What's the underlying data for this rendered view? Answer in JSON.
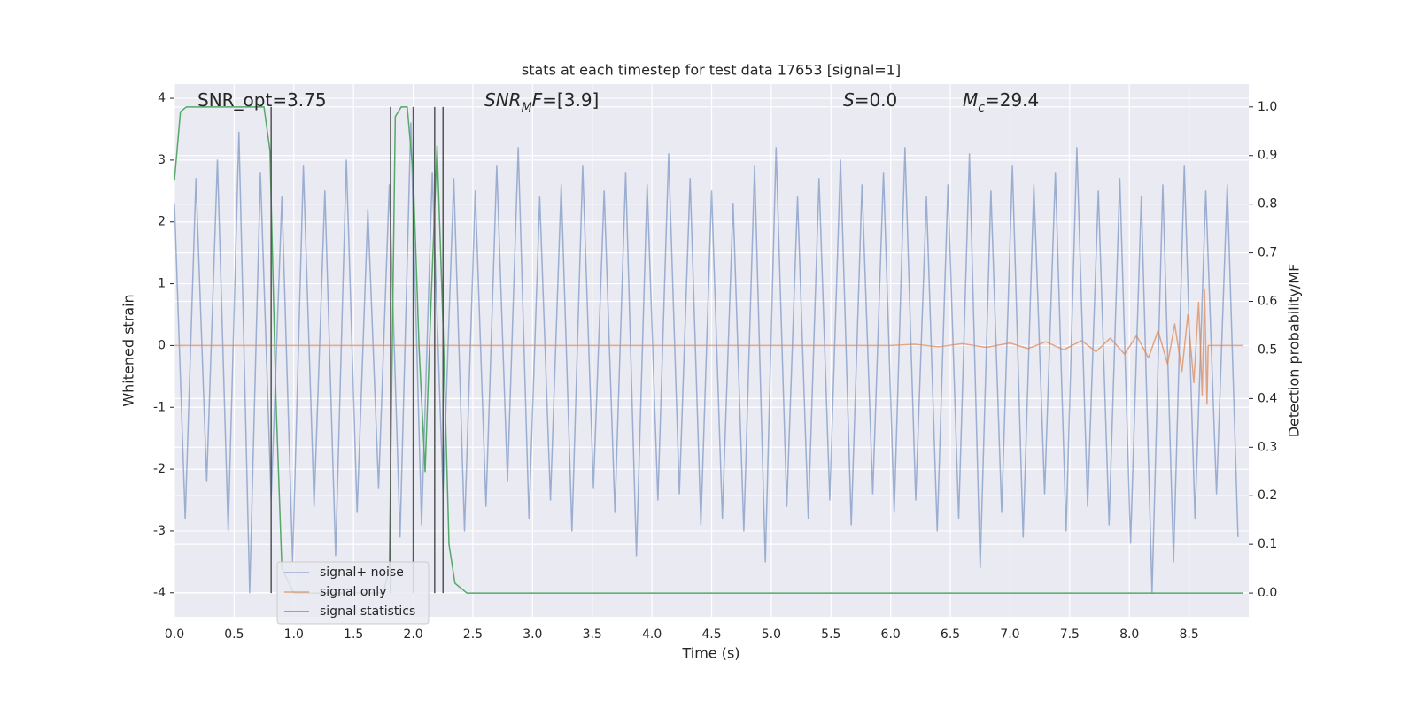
{
  "chart_data": {
    "type": "line",
    "title": "stats at each timestep for test data 17653 [signal=1]",
    "x_label": "Time (s)",
    "y_label": "Whitened strain",
    "y2_label": "Detection probability/MF",
    "grid": true,
    "legend_loc": "lower left",
    "background": "#eaeaf2",
    "xlim": [
      0,
      9
    ],
    "ylim": [
      -4.39,
      4.23
    ],
    "y2lim": [
      -0.049,
      1.047
    ],
    "xticks": [
      {
        "value": 0,
        "label": "0.0"
      },
      0.5,
      {
        "value": 1,
        "label": "1.0"
      },
      1.5,
      {
        "value": 2,
        "label": "2.0"
      },
      2.5,
      {
        "value": 3,
        "label": "3.0"
      },
      3.5,
      {
        "value": 4,
        "label": "4.0"
      },
      4.5,
      {
        "value": 5,
        "label": "5.0"
      },
      5.5,
      {
        "value": 6,
        "label": "6.0"
      },
      6.5,
      {
        "value": 7,
        "label": "7.0"
      },
      7.5,
      {
        "value": 8,
        "label": "8.0"
      },
      8.5
    ],
    "yticks": [
      -4,
      -3,
      -2,
      -1,
      0,
      1,
      2,
      3,
      4
    ],
    "y2ticks": [
      {
        "value": 0,
        "label": "0.0"
      },
      0.1,
      0.2,
      0.3,
      0.4,
      0.5,
      0.6,
      0.7,
      0.8,
      0.9,
      {
        "value": 1,
        "label": "1.0"
      }
    ],
    "annotations": [
      [
        {
          "text": "SNR_opt=3.75"
        }
      ],
      [
        {
          "text": "SNR",
          "italic": true
        },
        {
          "text": "M",
          "italic": true,
          "sub": true
        },
        {
          "text": "F",
          "italic": true
        },
        {
          "text": "=[3.9]"
        }
      ],
      [
        {
          "text": "S",
          "italic": true
        },
        {
          "text": "=0.0"
        }
      ],
      [
        {
          "text": "M",
          "italic": true
        },
        {
          "text": "c",
          "italic": true,
          "sub": true
        },
        {
          "text": "=29.4"
        }
      ]
    ],
    "vlines": {
      "color": "#555555",
      "x": [
        0.81,
        1.81,
        2.0,
        2.18,
        2.25
      ]
    },
    "series": [
      {
        "name": "signal+ noise",
        "color": "#4c72b0",
        "opacity": 0.5,
        "x": [
          0,
          0.09,
          0.18,
          0.27,
          0.36,
          0.45,
          0.54,
          0.63,
          0.72,
          0.81,
          0.9,
          0.99,
          1.08,
          1.17,
          1.26,
          1.35,
          1.44,
          1.53,
          1.62,
          1.71,
          1.8,
          1.89,
          1.98,
          2.07,
          2.16,
          2.25,
          2.34,
          2.43,
          2.52,
          2.61,
          2.7,
          2.79,
          2.88,
          2.97,
          3.06,
          3.15,
          3.24,
          3.33,
          3.42,
          3.51,
          3.6,
          3.69,
          3.78,
          3.87,
          3.96,
          4.05,
          4.14,
          4.23,
          4.32,
          4.41,
          4.5,
          4.59,
          4.68,
          4.77,
          4.86,
          4.95,
          5.04,
          5.13,
          5.22,
          5.31,
          5.4,
          5.49,
          5.58,
          5.67,
          5.76,
          5.85,
          5.94,
          6.03,
          6.12,
          6.21,
          6.3,
          6.39,
          6.48,
          6.57,
          6.66,
          6.75,
          6.84,
          6.93,
          7.02,
          7.11,
          7.2,
          7.29,
          7.38,
          7.47,
          7.56,
          7.65,
          7.74,
          7.83,
          7.92,
          8.01,
          8.1,
          8.19,
          8.28,
          8.37,
          8.46,
          8.55,
          8.64,
          8.73,
          8.82,
          8.91
        ],
        "values": [
          2.3,
          -2.8,
          2.7,
          -2.2,
          3.0,
          -3.0,
          3.45,
          -4.0,
          2.8,
          -2.5,
          2.4,
          -3.5,
          2.9,
          -2.6,
          2.5,
          -3.4,
          3.0,
          -2.7,
          2.2,
          -2.3,
          2.6,
          -3.1,
          3.6,
          -2.9,
          2.8,
          -2.4,
          2.7,
          -3.0,
          2.5,
          -2.6,
          2.9,
          -2.2,
          3.2,
          -2.8,
          2.4,
          -2.5,
          2.6,
          -3.0,
          2.9,
          -2.3,
          2.5,
          -2.7,
          2.8,
          -3.4,
          2.6,
          -2.5,
          3.1,
          -2.4,
          2.7,
          -2.9,
          2.5,
          -2.8,
          2.3,
          -3.0,
          2.9,
          -3.5,
          3.2,
          -2.6,
          2.4,
          -2.8,
          2.7,
          -2.5,
          3.0,
          -2.9,
          2.6,
          -2.4,
          2.8,
          -2.7,
          3.2,
          -2.5,
          2.4,
          -3.0,
          2.6,
          -2.8,
          3.1,
          -3.6,
          2.5,
          -2.7,
          2.9,
          -3.1,
          2.6,
          -2.4,
          2.8,
          -3.0,
          3.2,
          -2.6,
          2.5,
          -2.9,
          2.7,
          -3.2,
          2.4,
          -4.0,
          2.6,
          -3.5,
          2.9,
          -2.8,
          2.5,
          -2.4,
          2.6,
          -3.1
        ]
      },
      {
        "name": "signal only",
        "color": "#dd8452",
        "opacity": 0.7,
        "x": [
          0,
          6.0,
          6.2,
          6.4,
          6.6,
          6.8,
          7.0,
          7.15,
          7.3,
          7.45,
          7.6,
          7.72,
          7.84,
          7.96,
          8.06,
          8.16,
          8.24,
          8.32,
          8.38,
          8.44,
          8.49,
          8.54,
          8.58,
          8.61,
          8.63,
          8.65,
          8.66,
          8.95
        ],
        "values": [
          0,
          0,
          0.02,
          -0.02,
          0.03,
          -0.03,
          0.04,
          -0.05,
          0.06,
          -0.07,
          0.08,
          -0.1,
          0.12,
          -0.14,
          0.16,
          -0.2,
          0.24,
          -0.3,
          0.35,
          -0.42,
          0.5,
          -0.6,
          0.7,
          -0.8,
          0.9,
          -0.95,
          0,
          0
        ]
      },
      {
        "name": "signal statistics",
        "color": "#55a868",
        "opacity": 1,
        "axis": "y2",
        "x": [
          0,
          0.05,
          0.1,
          0.2,
          0.3,
          0.4,
          0.5,
          0.6,
          0.7,
          0.75,
          0.8,
          0.85,
          0.9,
          1.0,
          1.2,
          1.4,
          1.6,
          1.75,
          1.8,
          1.85,
          1.9,
          1.95,
          2.0,
          2.05,
          2.1,
          2.15,
          2.2,
          2.25,
          2.3,
          2.35,
          2.4,
          2.45,
          3.0,
          4.0,
          5.0,
          6.0,
          7.0,
          8.0,
          8.95
        ],
        "values": [
          0.85,
          0.99,
          1.0,
          1.0,
          1.0,
          1.0,
          1.0,
          1.0,
          1.0,
          1.0,
          0.91,
          0.4,
          0.05,
          0,
          0,
          0,
          0,
          0,
          0.05,
          0.98,
          1.0,
          1.0,
          0.86,
          0.5,
          0.25,
          0.6,
          0.92,
          0.55,
          0.1,
          0.02,
          0.01,
          0,
          0,
          0,
          0,
          0,
          0,
          0,
          0
        ]
      }
    ]
  }
}
